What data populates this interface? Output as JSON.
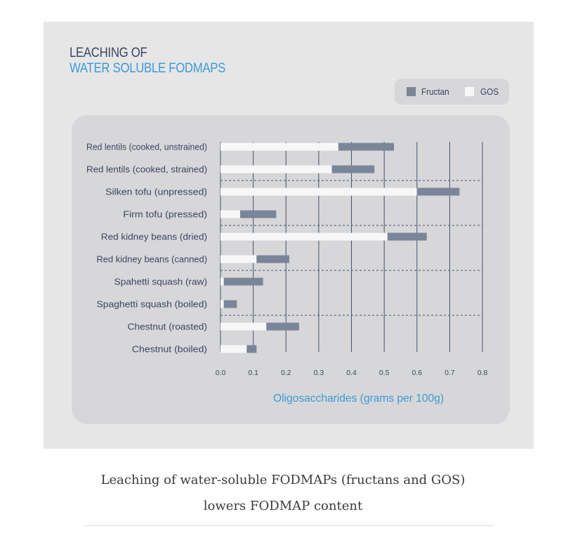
{
  "figure": {
    "title_line1": "LEACHING OF",
    "title_line2": "WATER SOLUBLE FODMAPS"
  },
  "legend": {
    "items": [
      {
        "label": "Fructan",
        "color": "#7a8599"
      },
      {
        "label": "GOS",
        "color": "#f7f7f7"
      }
    ]
  },
  "chart_data": {
    "type": "bar",
    "orientation": "horizontal",
    "stacked": true,
    "title": "LEACHING OF WATER SOLUBLE FODMAPS",
    "xlabel": "Oligosaccharides (grams per 100g)",
    "xlim": [
      0,
      0.8
    ],
    "xticks": [
      "0.0",
      "0.1",
      "0.2",
      "0.3",
      "0.4",
      "0.5",
      "0.6",
      "0.7",
      "0.8"
    ],
    "categories": [
      "Red lentils (cooked, unstrained)",
      "Red lentils (cooked, strained)",
      "Silken tofu (unpressed)",
      "Firm tofu (pressed)",
      "Red kidney beans (dried)",
      "Red kidney beans (canned)",
      "Spahetti squash (raw)",
      "Spaghetti squash (boiled)",
      "Chestnut (roasted)",
      "Chestnut (boiled)"
    ],
    "series": [
      {
        "name": "GOS",
        "color": "#f7f7f7",
        "values": [
          0.36,
          0.34,
          0.6,
          0.06,
          0.51,
          0.11,
          0.01,
          0.01,
          0.14,
          0.08
        ]
      },
      {
        "name": "Fructan",
        "color": "#7a8599",
        "values": [
          0.17,
          0.13,
          0.13,
          0.11,
          0.12,
          0.1,
          0.12,
          0.04,
          0.1,
          0.03
        ]
      }
    ],
    "grid": "vertical",
    "legend_position": "top-right"
  },
  "caption": {
    "line1": "Leaching of water-soluble FODMAPs (fructans and GOS)",
    "line2": "lowers FODMAP content"
  }
}
